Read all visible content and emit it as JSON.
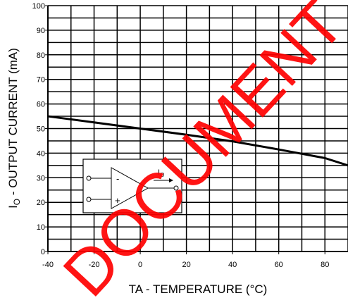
{
  "chart_data": {
    "type": "line",
    "x_label": "TA - TEMPERATURE (°C)",
    "y_label_main": "I",
    "y_label_sub": "O",
    "y_label_rest": " - OUTPUT CURRENT (mA)",
    "x": [
      -40,
      -20,
      0,
      20,
      40,
      60,
      80,
      90
    ],
    "series": [
      {
        "color": "#000000",
        "values": [
          55,
          52.5,
          50,
          47.5,
          44.8,
          41.5,
          38,
          35
        ]
      }
    ],
    "xlim": [
      -40,
      90
    ],
    "ylim": [
      0,
      100
    ],
    "xticks": [
      -40,
      -20,
      0,
      20,
      40,
      60,
      80
    ],
    "yticks": [
      0,
      10,
      20,
      30,
      40,
      50,
      60,
      70,
      80,
      90,
      100
    ],
    "xgrid": [
      -40,
      -30,
      -20,
      -10,
      0,
      10,
      20,
      30,
      40,
      50,
      60,
      70,
      80,
      90
    ],
    "ygrid": [
      0,
      5,
      10,
      15,
      20,
      25,
      30,
      35,
      40,
      45,
      50,
      55,
      60,
      65,
      70,
      75,
      80,
      85,
      90,
      95,
      100
    ],
    "grid": true,
    "inset": {
      "minus": "-",
      "plus": "+",
      "current_main": "I",
      "current_sub": "O"
    },
    "watermark": "DOCUMENT"
  }
}
